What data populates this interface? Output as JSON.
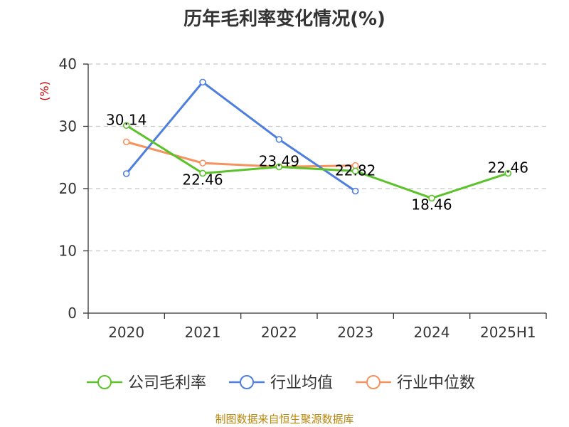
{
  "source_note": "制图数据来自恒生聚源数据库",
  "chart_data": {
    "type": "line",
    "title": "历年毛利率变化情况(%)",
    "ylabel": "(%)",
    "categories": [
      "2020",
      "2021",
      "2022",
      "2023",
      "2024",
      "2025H1"
    ],
    "ylim": [
      0,
      40
    ],
    "yticks": [
      0,
      10,
      20,
      30,
      40
    ],
    "grid": true,
    "legend_position": "bottom",
    "series": [
      {
        "name": "公司毛利率",
        "color": "#5bc22a",
        "values": [
          30.14,
          22.46,
          23.49,
          22.82,
          18.46,
          22.46
        ],
        "labels": [
          "30.14",
          "22.46",
          "23.49",
          "22.82",
          "18.46",
          "22.46"
        ]
      },
      {
        "name": "行业均值",
        "color": "#4e7fde",
        "values": [
          22.4,
          37.1,
          27.9,
          19.6,
          null,
          null
        ]
      },
      {
        "name": "行业中位数",
        "color": "#f5925e",
        "values": [
          27.5,
          24.1,
          23.5,
          23.7,
          null,
          null
        ]
      }
    ]
  }
}
